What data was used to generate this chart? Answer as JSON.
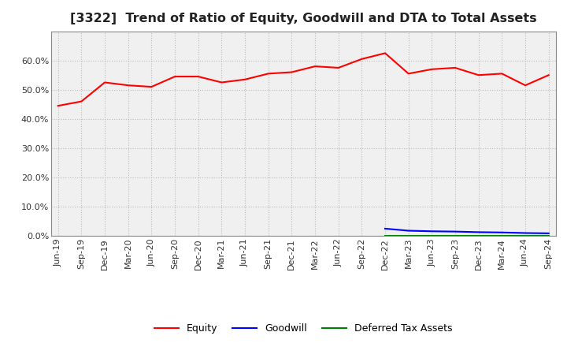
{
  "title": "[3322]  Trend of Ratio of Equity, Goodwill and DTA to Total Assets",
  "x_labels": [
    "Jun-19",
    "Sep-19",
    "Dec-19",
    "Mar-20",
    "Jun-20",
    "Sep-20",
    "Dec-20",
    "Mar-21",
    "Jun-21",
    "Sep-21",
    "Dec-21",
    "Mar-22",
    "Jun-22",
    "Sep-22",
    "Dec-22",
    "Mar-23",
    "Jun-23",
    "Sep-23",
    "Dec-23",
    "Mar-24",
    "Jun-24",
    "Sep-24"
  ],
  "equity": [
    0.445,
    0.46,
    0.525,
    0.515,
    0.51,
    0.545,
    0.545,
    0.525,
    0.535,
    0.555,
    0.56,
    0.58,
    0.575,
    0.605,
    0.625,
    0.555,
    0.57,
    0.575,
    0.55,
    0.555,
    0.515,
    0.55
  ],
  "goodwill": [
    null,
    null,
    null,
    null,
    null,
    null,
    null,
    null,
    null,
    null,
    null,
    null,
    null,
    null,
    0.025,
    0.018,
    0.016,
    0.015,
    0.013,
    0.012,
    0.01,
    0.009
  ],
  "dta": [
    null,
    null,
    null,
    null,
    null,
    null,
    null,
    null,
    null,
    null,
    null,
    null,
    null,
    null,
    0.001,
    0.001,
    0.001,
    0.001,
    0.001,
    0.001,
    0.001,
    0.001
  ],
  "equity_color": "#ff0000",
  "goodwill_color": "#0000ff",
  "dta_color": "#008000",
  "ylim": [
    0.0,
    0.7
  ],
  "yticks": [
    0.0,
    0.1,
    0.2,
    0.3,
    0.4,
    0.5,
    0.6
  ],
  "background_color": "#ffffff",
  "plot_bg_color": "#f0f0f0",
  "grid_color": "#bbbbbb",
  "title_fontsize": 11.5,
  "tick_fontsize": 8,
  "legend_labels": [
    "Equity",
    "Goodwill",
    "Deferred Tax Assets"
  ]
}
